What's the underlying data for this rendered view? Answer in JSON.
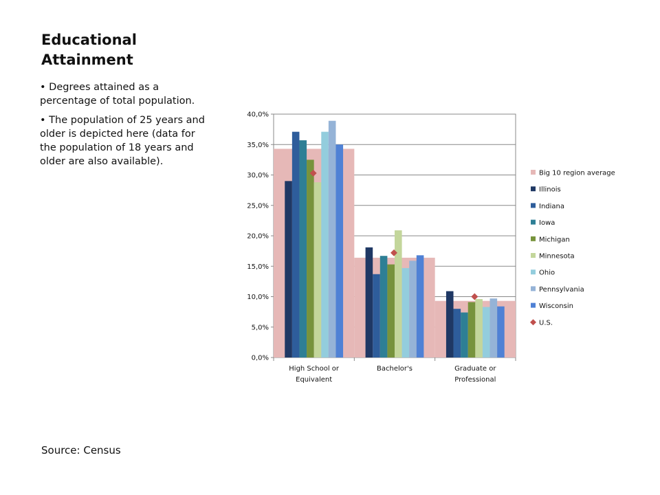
{
  "slide": {
    "title": "Educational Attainment",
    "bullets": [
      "Degrees attained as a percentage of total population.",
      "The population of 25 years and older is depicted here (data for the population of 18 years and older are also available)."
    ],
    "source": "Source: Census"
  },
  "chart_data": {
    "type": "bar",
    "categories": [
      "High School or Equivalent",
      "Bachelor's",
      "Graduate or Professional"
    ],
    "category_lines": [
      [
        "High School or",
        "Equivalent"
      ],
      [
        "Bachelor's"
      ],
      [
        "Graduate or",
        "Professional"
      ]
    ],
    "ylim": [
      0,
      40
    ],
    "yticks": [
      0,
      5,
      10,
      15,
      20,
      25,
      30,
      35,
      40
    ],
    "ytick_labels": [
      "0,0%",
      "5,0%",
      "10,0%",
      "15,0%",
      "20,0%",
      "25,0%",
      "30,0%",
      "35,0%",
      "40,0%"
    ],
    "grid": true,
    "legend_position": "right",
    "background_series": {
      "name": "Big 10 region average",
      "color": "#e6b8b7",
      "values": [
        34.3,
        16.4,
        9.3
      ]
    },
    "series": [
      {
        "name": "Illinois",
        "color": "#1f3864",
        "values": [
          29.0,
          18.1,
          10.9
        ]
      },
      {
        "name": "Indiana",
        "color": "#2e5d9b",
        "values": [
          37.1,
          13.7,
          8.0
        ]
      },
      {
        "name": "Iowa",
        "color": "#2e7f95",
        "values": [
          35.7,
          16.7,
          7.4
        ]
      },
      {
        "name": "Michigan",
        "color": "#77933c",
        "values": [
          32.5,
          15.3,
          9.1
        ]
      },
      {
        "name": "Minnesota",
        "color": "#c3d69b",
        "values": [
          28.8,
          20.9,
          9.6
        ]
      },
      {
        "name": "Ohio",
        "color": "#93cddd",
        "values": [
          37.1,
          14.7,
          8.3
        ]
      },
      {
        "name": "Pennsylvania",
        "color": "#95b3d7",
        "values": [
          38.9,
          15.9,
          9.7
        ]
      },
      {
        "name": "Wisconsin",
        "color": "#4f81d5",
        "values": [
          35.0,
          16.8,
          8.4
        ]
      }
    ],
    "marker_series": {
      "name": "U.S.",
      "color": "#c0504d",
      "values": [
        30.3,
        17.2,
        10.0
      ]
    }
  }
}
